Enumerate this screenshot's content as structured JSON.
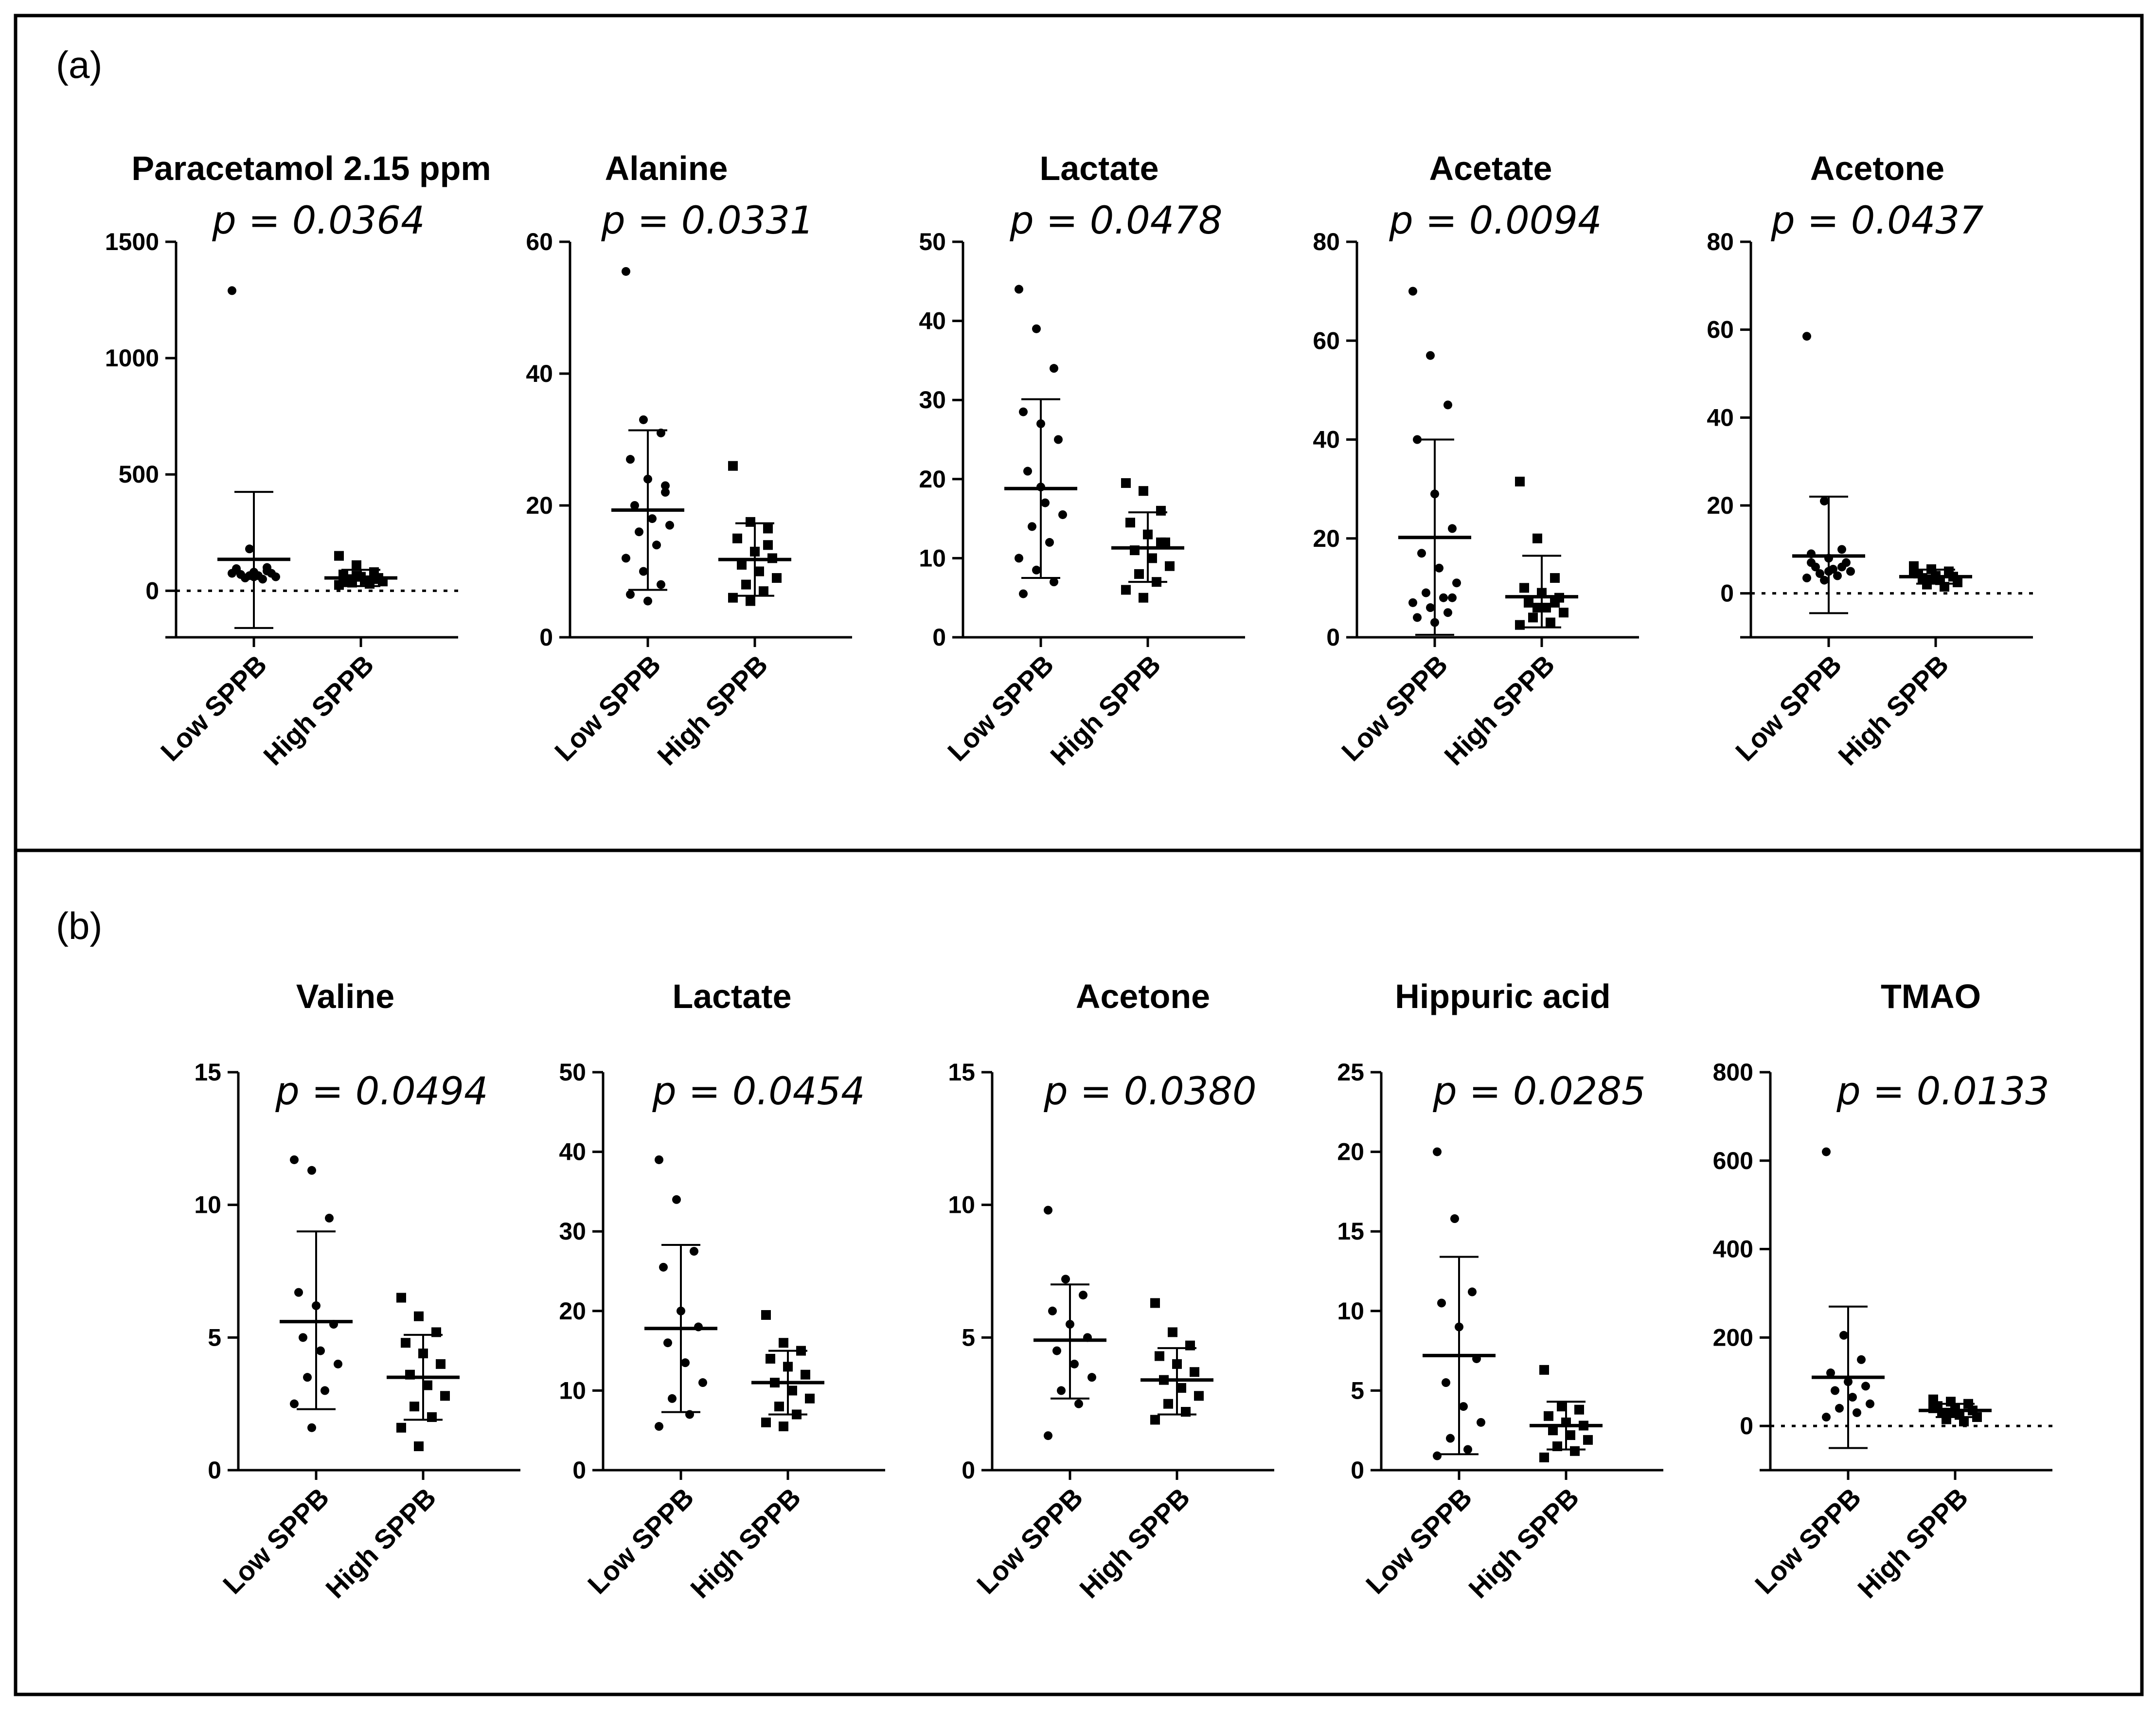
{
  "panels": [
    {
      "label": "(a)"
    },
    {
      "label": "(b)"
    }
  ],
  "chart_data": [
    {
      "panel": "(a)",
      "type": "scatter",
      "title": "Paracetamol 2.15 ppm",
      "pvalue": "p = 0.0364",
      "ylim": [
        -200,
        1500
      ],
      "yticks": [
        {
          "v": 0,
          "t": "0"
        },
        {
          "v": 500,
          "t": "500"
        },
        {
          "v": 1000,
          "t": "1000"
        },
        {
          "v": 1500,
          "t": "1500"
        }
      ],
      "zero_line": true,
      "categories": [
        "Low SPPB",
        "High SPPB"
      ],
      "groups": [
        {
          "name": "Low SPPB",
          "marker": "circle",
          "mean": 135,
          "sd_low": -160,
          "sd_high": 425,
          "values": [
            1290,
            180,
            100,
            90,
            80,
            75,
            70,
            65,
            60,
            55,
            50,
            75,
            65,
            85,
            95,
            60
          ]
        },
        {
          "name": "High SPPB",
          "marker": "square",
          "mean": 55,
          "sd_low": 20,
          "sd_high": 90,
          "values": [
            150,
            110,
            80,
            70,
            60,
            55,
            50,
            45,
            40,
            35,
            30,
            25,
            65,
            50,
            40
          ]
        }
      ]
    },
    {
      "panel": "(a)",
      "type": "scatter",
      "title": "Alanine",
      "pvalue": "p = 0.0331",
      "ylim": [
        0,
        60
      ],
      "yticks": [
        {
          "v": 0,
          "t": "0"
        },
        {
          "v": 20,
          "t": "20"
        },
        {
          "v": 40,
          "t": "40"
        },
        {
          "v": 60,
          "t": "60"
        }
      ],
      "zero_line": false,
      "categories": [
        "Low SPPB",
        "High SPPB"
      ],
      "groups": [
        {
          "name": "Low SPPB",
          "marker": "circle",
          "mean": 19.3,
          "sd_low": 7.2,
          "sd_high": 31.4,
          "values": [
            55.5,
            33,
            31,
            27,
            24,
            22,
            20,
            18,
            17,
            16,
            14,
            12,
            10,
            8,
            6.5,
            5.5,
            23
          ]
        },
        {
          "name": "High SPPB",
          "marker": "square",
          "mean": 11.8,
          "sd_low": 6.3,
          "sd_high": 17.3,
          "values": [
            26,
            17.5,
            16.5,
            15,
            13,
            12,
            11,
            10,
            9,
            8,
            7,
            6,
            5.5,
            14
          ]
        }
      ]
    },
    {
      "panel": "(a)",
      "type": "scatter",
      "title": "Lactate",
      "pvalue": "p = 0.0478",
      "ylim": [
        0,
        50
      ],
      "yticks": [
        {
          "v": 0,
          "t": "0"
        },
        {
          "v": 10,
          "t": "10"
        },
        {
          "v": 20,
          "t": "20"
        },
        {
          "v": 30,
          "t": "30"
        },
        {
          "v": 40,
          "t": "40"
        },
        {
          "v": 50,
          "t": "50"
        }
      ],
      "zero_line": false,
      "categories": [
        "Low SPPB",
        "High SPPB"
      ],
      "groups": [
        {
          "name": "Low SPPB",
          "marker": "circle",
          "mean": 18.8,
          "sd_low": 7.5,
          "sd_high": 30.1,
          "values": [
            44,
            39,
            34,
            28.5,
            27,
            25,
            21,
            17,
            15.5,
            14,
            12,
            10,
            8.5,
            7,
            5.5,
            19
          ]
        },
        {
          "name": "High SPPB",
          "marker": "square",
          "mean": 11.3,
          "sd_low": 7,
          "sd_high": 15.8,
          "values": [
            19.5,
            18.5,
            16,
            14.5,
            13,
            12,
            11,
            10,
            9,
            8,
            7,
            6,
            5,
            12
          ]
        }
      ]
    },
    {
      "panel": "(a)",
      "type": "scatter",
      "title": "Acetate",
      "pvalue": "p = 0.0094",
      "ylim": [
        0,
        80
      ],
      "yticks": [
        {
          "v": 0,
          "t": "0"
        },
        {
          "v": 20,
          "t": "20"
        },
        {
          "v": 40,
          "t": "40"
        },
        {
          "v": 60,
          "t": "60"
        },
        {
          "v": 80,
          "t": "80"
        }
      ],
      "zero_line": false,
      "categories": [
        "Low SPPB",
        "High SPPB"
      ],
      "groups": [
        {
          "name": "Low SPPB",
          "marker": "circle",
          "mean": 20.2,
          "sd_low": 0.5,
          "sd_high": 40,
          "values": [
            70,
            57,
            47,
            40,
            29,
            22,
            17,
            14,
            11,
            9,
            8,
            7,
            6,
            5,
            4,
            3,
            8
          ]
        },
        {
          "name": "High SPPB",
          "marker": "square",
          "mean": 8.2,
          "sd_low": 2,
          "sd_high": 16.5,
          "values": [
            31.5,
            20,
            12,
            10,
            9,
            8,
            7,
            6,
            5,
            4,
            3,
            2.5,
            6,
            7
          ]
        }
      ]
    },
    {
      "panel": "(a)",
      "type": "scatter",
      "title": "Acetone",
      "pvalue": "p = 0.0437",
      "ylim": [
        -10,
        80
      ],
      "yticks": [
        {
          "v": 0,
          "t": "0"
        },
        {
          "v": 20,
          "t": "20"
        },
        {
          "v": 40,
          "t": "40"
        },
        {
          "v": 60,
          "t": "60"
        },
        {
          "v": 80,
          "t": "80"
        }
      ],
      "zero_line": true,
      "categories": [
        "Low SPPB",
        "High SPPB"
      ],
      "groups": [
        {
          "name": "Low SPPB",
          "marker": "circle",
          "mean": 8.5,
          "sd_low": -4.5,
          "sd_high": 22,
          "values": [
            58.5,
            21,
            10,
            9,
            8,
            7,
            6,
            5.5,
            5,
            4.5,
            4,
            3.5,
            3,
            6,
            7,
            5
          ]
        },
        {
          "name": "High SPPB",
          "marker": "square",
          "mean": 3.8,
          "sd_low": 2.2,
          "sd_high": 5.4,
          "values": [
            6.2,
            5.5,
            5,
            4.5,
            4,
            3.8,
            3.5,
            3,
            2.5,
            2,
            1.5,
            4.8,
            3.2
          ]
        }
      ]
    },
    {
      "panel": "(b)",
      "type": "scatter",
      "title": "Valine",
      "pvalue": "p = 0.0494",
      "ylim": [
        0,
        15
      ],
      "yticks": [
        {
          "v": 0,
          "t": "0"
        },
        {
          "v": 5,
          "t": "5"
        },
        {
          "v": 10,
          "t": "10"
        },
        {
          "v": 15,
          "t": "15"
        }
      ],
      "zero_line": false,
      "categories": [
        "Low SPPB",
        "High SPPB"
      ],
      "groups": [
        {
          "name": "Low SPPB",
          "marker": "circle",
          "mean": 5.6,
          "sd_low": 2.3,
          "sd_high": 9,
          "values": [
            11.7,
            11.3,
            9.5,
            6.7,
            6.2,
            5.5,
            5,
            4.5,
            4,
            3.5,
            3,
            2.5,
            1.6
          ]
        },
        {
          "name": "High SPPB",
          "marker": "square",
          "mean": 3.5,
          "sd_low": 1.9,
          "sd_high": 5.1,
          "values": [
            6.5,
            5.8,
            5.2,
            4.8,
            4.4,
            4,
            3.6,
            3.2,
            2.8,
            2.4,
            2,
            1.6,
            0.9
          ]
        }
      ]
    },
    {
      "panel": "(b)",
      "type": "scatter",
      "title": "Lactate",
      "pvalue": "p = 0.0454",
      "ylim": [
        0,
        50
      ],
      "yticks": [
        {
          "v": 0,
          "t": "0"
        },
        {
          "v": 10,
          "t": "10"
        },
        {
          "v": 20,
          "t": "20"
        },
        {
          "v": 30,
          "t": "30"
        },
        {
          "v": 40,
          "t": "40"
        },
        {
          "v": 50,
          "t": "50"
        }
      ],
      "zero_line": false,
      "categories": [
        "Low SPPB",
        "High SPPB"
      ],
      "groups": [
        {
          "name": "Low SPPB",
          "marker": "circle",
          "mean": 17.8,
          "sd_low": 7.3,
          "sd_high": 28.3,
          "values": [
            39,
            34,
            27.5,
            25.5,
            20,
            18,
            16,
            13.5,
            11,
            9,
            7,
            5.5
          ]
        },
        {
          "name": "High SPPB",
          "marker": "square",
          "mean": 11,
          "sd_low": 7,
          "sd_high": 15,
          "values": [
            19.5,
            16,
            15,
            14,
            13,
            12,
            11,
            10,
            9,
            8,
            7,
            6,
            5.5
          ]
        }
      ]
    },
    {
      "panel": "(b)",
      "type": "scatter",
      "title": "Acetone",
      "pvalue": "p = 0.0380",
      "ylim": [
        0,
        15
      ],
      "yticks": [
        {
          "v": 0,
          "t": "0"
        },
        {
          "v": 5,
          "t": "5"
        },
        {
          "v": 10,
          "t": "10"
        },
        {
          "v": 15,
          "t": "15"
        }
      ],
      "zero_line": false,
      "categories": [
        "Low SPPB",
        "High SPPB"
      ],
      "groups": [
        {
          "name": "Low SPPB",
          "marker": "circle",
          "mean": 4.9,
          "sd_low": 2.7,
          "sd_high": 7,
          "values": [
            9.8,
            7.2,
            6.6,
            6,
            5.5,
            5,
            4.5,
            4,
            3.5,
            3,
            2.5,
            1.3
          ]
        },
        {
          "name": "High SPPB",
          "marker": "square",
          "mean": 3.4,
          "sd_low": 2.1,
          "sd_high": 4.6,
          "values": [
            6.3,
            5.2,
            4.7,
            4.3,
            4,
            3.7,
            3.4,
            3.1,
            2.8,
            2.5,
            2.2,
            1.9
          ]
        }
      ]
    },
    {
      "panel": "(b)",
      "type": "scatter",
      "title": "Hippuric acid",
      "pvalue": "p = 0.0285",
      "ylim": [
        0,
        25
      ],
      "yticks": [
        {
          "v": 0,
          "t": "0"
        },
        {
          "v": 5,
          "t": "5"
        },
        {
          "v": 10,
          "t": "10"
        },
        {
          "v": 15,
          "t": "15"
        },
        {
          "v": 20,
          "t": "20"
        },
        {
          "v": 25,
          "t": "25"
        }
      ],
      "zero_line": false,
      "categories": [
        "Low SPPB",
        "High SPPB"
      ],
      "groups": [
        {
          "name": "Low SPPB",
          "marker": "circle",
          "mean": 7.2,
          "sd_low": 1,
          "sd_high": 13.4,
          "values": [
            20,
            15.8,
            11.2,
            10.5,
            9,
            7,
            5.5,
            4,
            3,
            2,
            1.3,
            0.9
          ]
        },
        {
          "name": "High SPPB",
          "marker": "square",
          "mean": 2.8,
          "sd_low": 1.3,
          "sd_high": 4.3,
          "values": [
            6.3,
            4,
            3.8,
            3.4,
            3,
            2.8,
            2.5,
            2.2,
            1.9,
            1.5,
            1.2,
            0.8
          ]
        }
      ]
    },
    {
      "panel": "(b)",
      "type": "scatter",
      "title": "TMAO",
      "pvalue": "p = 0.0133",
      "ylim": [
        -100,
        800
      ],
      "yticks": [
        {
          "v": 0,
          "t": "0"
        },
        {
          "v": 200,
          "t": "200"
        },
        {
          "v": 400,
          "t": "400"
        },
        {
          "v": 600,
          "t": "600"
        },
        {
          "v": 800,
          "t": "800"
        }
      ],
      "zero_line": true,
      "categories": [
        "Low SPPB",
        "High SPPB"
      ],
      "groups": [
        {
          "name": "Low SPPB",
          "marker": "circle",
          "mean": 110,
          "sd_low": -50,
          "sd_high": 270,
          "values": [
            620,
            205,
            150,
            120,
            100,
            90,
            80,
            65,
            50,
            40,
            30,
            20
          ]
        },
        {
          "name": "High SPPB",
          "marker": "square",
          "mean": 35,
          "sd_low": 20,
          "sd_high": 50,
          "values": [
            60,
            55,
            50,
            45,
            40,
            35,
            30,
            25,
            20,
            15,
            10,
            40,
            30
          ]
        }
      ]
    }
  ]
}
